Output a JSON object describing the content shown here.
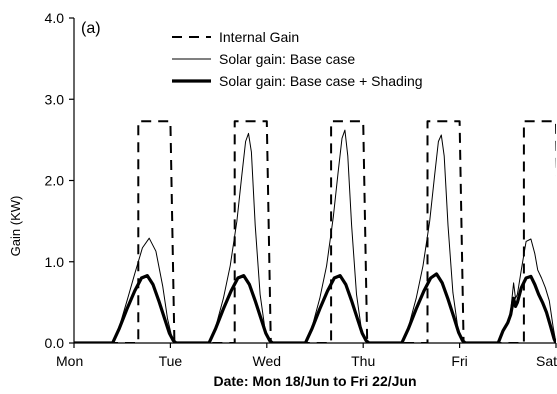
{
  "chart_data": {
    "type": "line",
    "panel_label": "(a)",
    "xlabel": "Date: Mon 18/Jun to Fri 22/Jun",
    "ylabel": "Gain (KW)",
    "xlim": [
      0,
      5
    ],
    "ylim": [
      0,
      4
    ],
    "x_tick_values": [
      0,
      1,
      2,
      3,
      4,
      5
    ],
    "x_tick_labels": [
      "Mon",
      "Tue",
      "Wed",
      "Thu",
      "Fri",
      "Sat"
    ],
    "y_tick_values": [
      0,
      1,
      2,
      3,
      4
    ],
    "y_tick_labels": [
      "0.0",
      "1.0",
      "2.0",
      "3.0",
      "4.0"
    ],
    "grid": false,
    "legend_position": "top-left",
    "series": [
      {
        "name": "Internal Gain",
        "style": "dashed",
        "color": "#000000",
        "x": [
          0.0,
          0.625,
          0.625,
          0.667,
          0.667,
          1.0,
          1.0,
          1.042,
          1.042,
          1.625,
          1.625,
          1.667,
          1.667,
          2.0,
          2.0,
          2.042,
          2.042,
          2.625,
          2.625,
          2.667,
          2.667,
          3.0,
          3.0,
          3.042,
          3.042,
          3.625,
          3.625,
          3.667,
          3.667,
          4.0,
          4.0,
          4.042,
          4.042,
          4.625,
          4.625,
          4.667,
          4.667,
          5.0,
          5.0,
          5.042,
          5.042
        ],
        "y": [
          0.0,
          0.0,
          0.0,
          0.0,
          2.73,
          2.73,
          2.73,
          0.0,
          0.0,
          0.0,
          0.0,
          0.0,
          2.73,
          2.73,
          2.73,
          0.0,
          0.0,
          0.0,
          0.0,
          0.0,
          2.73,
          2.73,
          2.73,
          0.0,
          0.0,
          0.0,
          0.0,
          0.0,
          2.73,
          2.73,
          2.73,
          0.0,
          0.0,
          0.0,
          0.0,
          0.0,
          2.73,
          2.73,
          2.73,
          0.0,
          0.0
        ]
      },
      {
        "name": "Solar gain: Base case",
        "style": "thin",
        "color": "#000000",
        "x": [
          0.0,
          0.4,
          0.47,
          0.55,
          0.63,
          0.71,
          0.78,
          0.85,
          0.92,
          0.97,
          1.02,
          1.06,
          1.4,
          1.47,
          1.55,
          1.62,
          1.69,
          1.74,
          1.78,
          1.81,
          1.84,
          1.88,
          1.93,
          1.99,
          2.05,
          2.4,
          2.47,
          2.55,
          2.62,
          2.69,
          2.74,
          2.78,
          2.81,
          2.84,
          2.88,
          2.93,
          2.99,
          3.05,
          3.4,
          3.47,
          3.55,
          3.62,
          3.69,
          3.74,
          3.78,
          3.81,
          3.84,
          3.88,
          3.93,
          3.99,
          4.05,
          4.4,
          4.45,
          4.5,
          4.53,
          4.56,
          4.58,
          4.6,
          4.64,
          4.69,
          4.74,
          4.78,
          4.81,
          4.85,
          4.89,
          4.93,
          4.97,
          5.0
        ],
        "y": [
          0.0,
          0.0,
          0.2,
          0.52,
          0.85,
          1.17,
          1.29,
          1.13,
          0.7,
          0.3,
          0.05,
          0.0,
          0.0,
          0.2,
          0.55,
          0.95,
          1.5,
          2.05,
          2.48,
          2.58,
          2.35,
          1.45,
          0.6,
          0.1,
          0.0,
          0.0,
          0.2,
          0.55,
          0.95,
          1.55,
          2.1,
          2.52,
          2.62,
          2.3,
          1.45,
          0.6,
          0.1,
          0.0,
          0.0,
          0.2,
          0.55,
          0.95,
          1.5,
          2.05,
          2.48,
          2.56,
          2.3,
          1.45,
          0.62,
          0.12,
          0.0,
          0.0,
          0.15,
          0.25,
          0.4,
          0.74,
          0.55,
          0.6,
          0.9,
          1.25,
          1.28,
          1.1,
          0.9,
          0.8,
          0.68,
          0.52,
          0.2,
          0.0
        ]
      },
      {
        "name": "Solar gain: Base case + Shading",
        "style": "thick",
        "color": "#000000",
        "x": [
          0.0,
          0.4,
          0.47,
          0.55,
          0.63,
          0.7,
          0.76,
          0.82,
          0.88,
          0.94,
          0.99,
          1.03,
          1.06,
          1.4,
          1.47,
          1.55,
          1.63,
          1.7,
          1.76,
          1.82,
          1.88,
          1.94,
          1.99,
          2.03,
          2.06,
          2.4,
          2.47,
          2.55,
          2.63,
          2.7,
          2.76,
          2.82,
          2.88,
          2.94,
          2.99,
          3.03,
          3.06,
          3.4,
          3.47,
          3.55,
          3.63,
          3.7,
          3.76,
          3.82,
          3.88,
          3.94,
          3.99,
          4.03,
          4.06,
          4.4,
          4.45,
          4.5,
          4.53,
          4.56,
          4.58,
          4.6,
          4.64,
          4.69,
          4.74,
          4.78,
          4.82,
          4.86,
          4.9,
          4.94,
          4.98,
          5.0
        ],
        "y": [
          0.0,
          0.0,
          0.18,
          0.42,
          0.64,
          0.8,
          0.83,
          0.72,
          0.52,
          0.3,
          0.12,
          0.03,
          0.0,
          0.0,
          0.18,
          0.42,
          0.64,
          0.8,
          0.83,
          0.72,
          0.52,
          0.3,
          0.12,
          0.03,
          0.0,
          0.0,
          0.18,
          0.42,
          0.64,
          0.8,
          0.83,
          0.72,
          0.52,
          0.3,
          0.12,
          0.03,
          0.0,
          0.0,
          0.18,
          0.42,
          0.64,
          0.8,
          0.85,
          0.74,
          0.54,
          0.32,
          0.13,
          0.03,
          0.0,
          0.0,
          0.15,
          0.25,
          0.35,
          0.55,
          0.45,
          0.5,
          0.68,
          0.8,
          0.82,
          0.72,
          0.6,
          0.5,
          0.38,
          0.22,
          0.05,
          0.0
        ]
      }
    ]
  }
}
